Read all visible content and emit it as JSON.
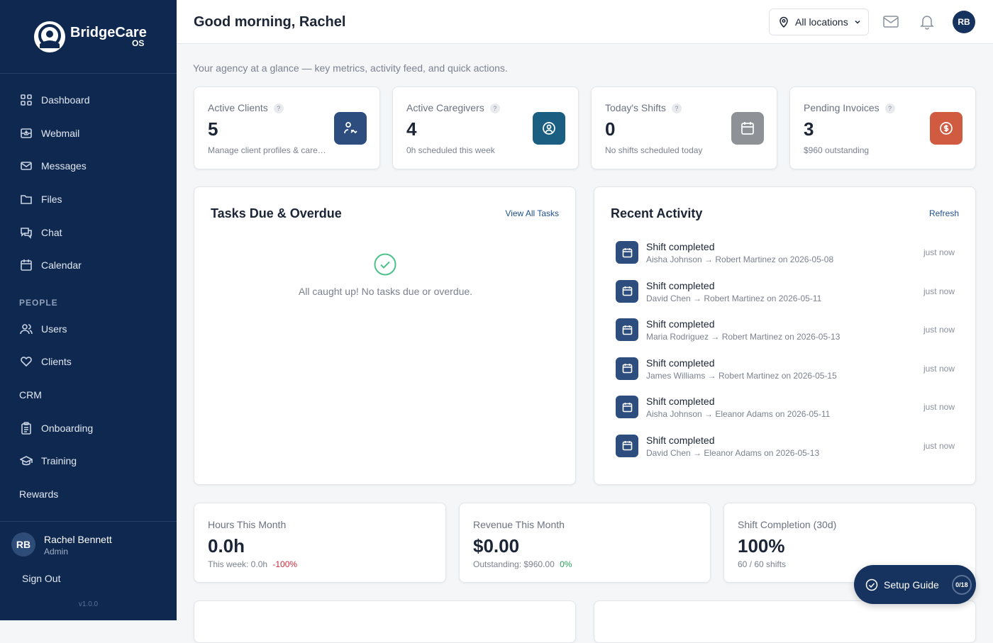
{
  "sidebar": {
    "brand": "BridgeCare",
    "brand_sub": "OS",
    "nav": [
      "Dashboard",
      "Webmail",
      "Messages",
      "Files",
      "Chat",
      "Calendar"
    ],
    "section": "PEOPLE",
    "people_nav": [
      "Users",
      "Clients",
      "CRM",
      "Onboarding",
      "Training",
      "Rewards"
    ],
    "user": {
      "initials": "RB",
      "name": "Rachel Bennett",
      "role": "Admin"
    },
    "sign_out": "Sign Out",
    "version": "v1.0.0"
  },
  "header": {
    "greeting": "Good morning, Rachel",
    "location": "All locations",
    "avatar": "RB"
  },
  "subtitle": "Your agency at a glance — key metrics, activity feed, and quick actions.",
  "stats": [
    {
      "label": "Active Clients",
      "help": "?",
      "value": 5,
      "note": "Manage client profiles & care…"
    },
    {
      "label": "Active Caregivers",
      "help": "?",
      "value": 4,
      "note": "0h scheduled this week"
    },
    {
      "label": "Today's Shifts",
      "help": "?",
      "value": 0,
      "note": "No shifts scheduled today"
    },
    {
      "label": "Pending Invoices",
      "help": "?",
      "value": 3,
      "note": "$960 outstanding"
    }
  ],
  "tasks": {
    "title": "Tasks Due & Overdue",
    "link": "View All Tasks",
    "empty": "All caught up! No tasks due or overdue."
  },
  "activity": {
    "title": "Recent Activity",
    "link": "Refresh",
    "items": [
      {
        "title": "Shift completed",
        "detail": "Aisha Johnson → Robert Martinez on 2026-05-08",
        "time": "just now"
      },
      {
        "title": "Shift completed",
        "detail": "David Chen → Robert Martinez on 2026-05-11",
        "time": "just now"
      },
      {
        "title": "Shift completed",
        "detail": "Maria Rodriguez → Robert Martinez on 2026-05-13",
        "time": "just now"
      },
      {
        "title": "Shift completed",
        "detail": "James Williams → Robert Martinez on 2026-05-15",
        "time": "just now"
      },
      {
        "title": "Shift completed",
        "detail": "Aisha Johnson → Eleanor Adams on 2026-05-11",
        "time": "just now"
      },
      {
        "title": "Shift completed",
        "detail": "David Chen → Eleanor Adams on 2026-05-13",
        "time": "just now"
      }
    ]
  },
  "metrics": [
    {
      "label": "Hours This Month",
      "value": "0.0h",
      "note": "This week: 0.0h",
      "change": "-100%"
    },
    {
      "label": "Revenue This Month",
      "value": "$0.00",
      "note": "Outstanding: $960.00",
      "change": "0%"
    },
    {
      "label": "Shift Completion (30d)",
      "value": "100%",
      "note": "60 / 60 shifts"
    }
  ],
  "setup_guide": {
    "label": "Setup Guide",
    "progress": "0/18"
  }
}
